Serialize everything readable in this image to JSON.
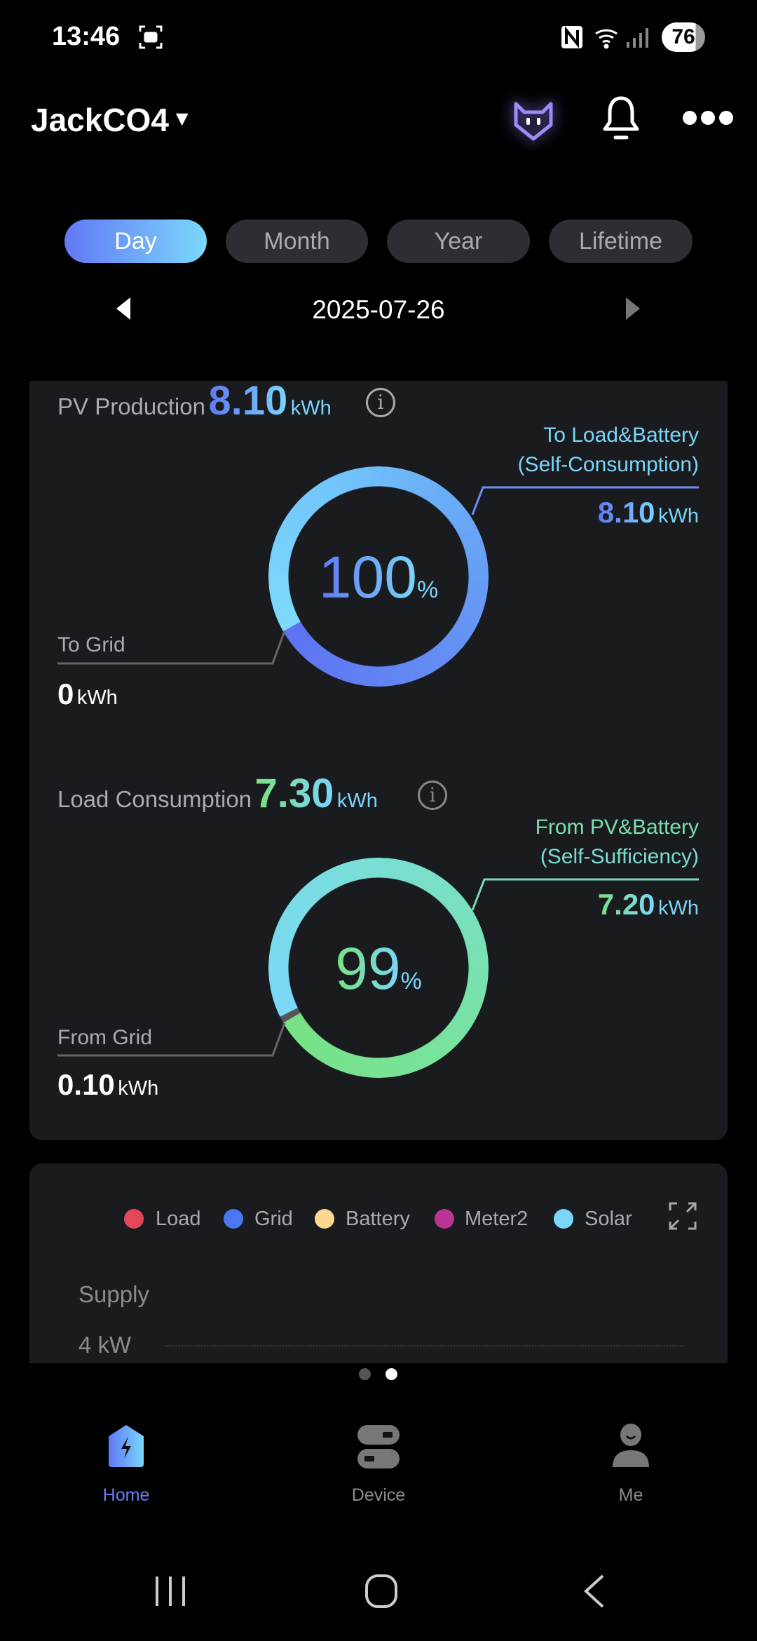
{
  "status_bar": {
    "time": "13:46",
    "battery": "76",
    "icons": [
      "screenshot-icon",
      "nfc-icon",
      "wifi-icon",
      "signal-icon",
      "battery-icon"
    ]
  },
  "header": {
    "plant_name": "JackCO4",
    "icons": [
      "cat-assistant-icon",
      "bell-icon",
      "more-icon"
    ]
  },
  "period_tabs": [
    {
      "label": "Day",
      "active": true
    },
    {
      "label": "Month",
      "active": false
    },
    {
      "label": "Year",
      "active": false
    },
    {
      "label": "Lifetime",
      "active": false
    }
  ],
  "date_nav": {
    "date": "2025-07-26"
  },
  "pv_production": {
    "label": "PV Production",
    "value": "8.10",
    "unit": "kWh",
    "percent": "100",
    "percent_sign": "%",
    "self_consumption": {
      "label1": "To Load&Battery",
      "label2": "(Self-Consumption)",
      "value": "8.10",
      "unit": "kWh"
    },
    "to_grid": {
      "label": "To Grid",
      "value": "0",
      "unit": "kWh"
    }
  },
  "load_consumption": {
    "label": "Load Consumption",
    "value": "7.30",
    "unit": "kWh",
    "percent": "99",
    "percent_sign": "%",
    "self_sufficiency": {
      "label1": "From PV&Battery",
      "label2": "(Self-Sufficiency)",
      "value": "7.20",
      "unit": "kWh"
    },
    "from_grid": {
      "label": "From Grid",
      "value": "0.10",
      "unit": "kWh"
    }
  },
  "power_chart": {
    "legend": [
      {
        "label": "Load",
        "color": "#e5475a"
      },
      {
        "label": "Grid",
        "color": "#4a78f2"
      },
      {
        "label": "Battery",
        "color": "#fbd88f"
      },
      {
        "label": "Meter2",
        "color": "#bb3494"
      },
      {
        "label": "Solar",
        "color": "#7ad6fb"
      }
    ],
    "section_label": "Supply",
    "y_tick": "4 kW"
  },
  "pager": {
    "count": 2,
    "active": 2
  },
  "bottom_nav": [
    {
      "label": "Home",
      "active": true
    },
    {
      "label": "Device",
      "active": false
    },
    {
      "label": "Me",
      "active": false
    }
  ],
  "colors": {
    "accent": "#6b7cf5",
    "card": "#1a1b1e",
    "tab": "#2c2e33"
  }
}
